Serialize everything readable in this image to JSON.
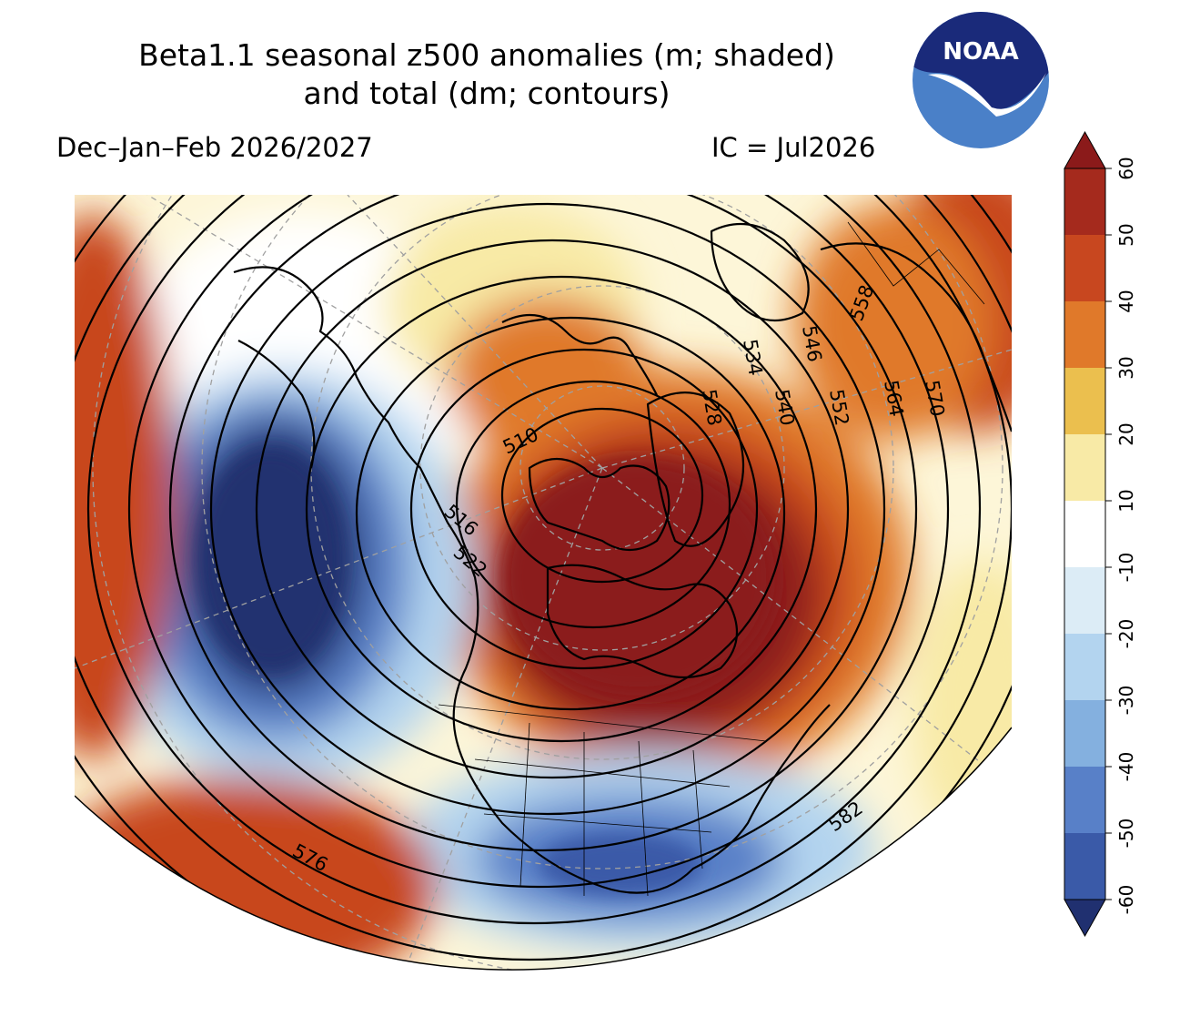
{
  "title": {
    "line1": "Beta1.1 seasonal z500 anomalies (m; shaded)",
    "line2": "and total (dm; contours)"
  },
  "subtitle": {
    "left": "Dec–Jan–Feb 2026/2027",
    "right": "IC = Jul2026"
  },
  "logo": {
    "text": "NOAA",
    "top_color": "#1a2a7a",
    "bottom_color": "#4a80c8"
  },
  "colorbar": {
    "ticks": [
      "60",
      "50",
      "40",
      "30",
      "20",
      "10",
      "-10",
      "-20",
      "-30",
      "-40",
      "-50",
      "-60"
    ],
    "colors": [
      "#8b1a1a",
      "#a52a1d",
      "#c8471f",
      "#e0792a",
      "#ebbf4e",
      "#f8eaa6",
      "#ffffff",
      "#dcecf6",
      "#b3d4ef",
      "#84b0df",
      "#5880c8",
      "#3a5aa8",
      "#203070"
    ]
  },
  "contour_labels": [
    "510",
    "516",
    "522",
    "528",
    "534",
    "540",
    "546",
    "552",
    "558",
    "564",
    "570",
    "576",
    "582"
  ]
}
